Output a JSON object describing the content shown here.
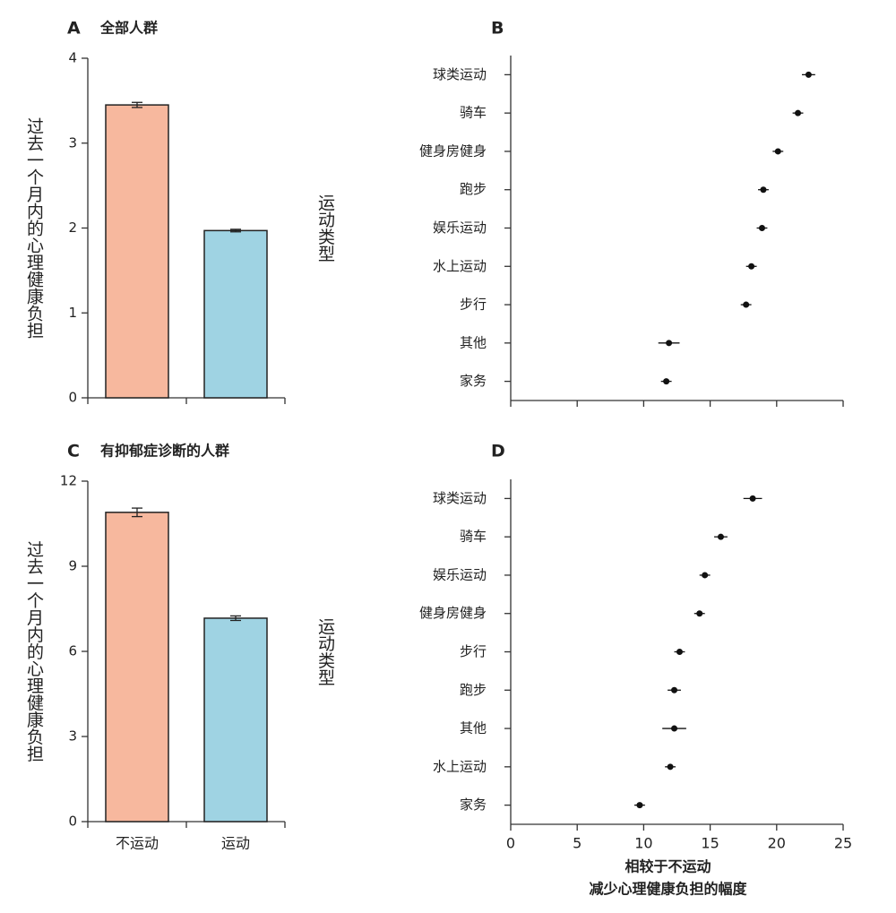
{
  "chart_data": [
    {
      "type": "bar",
      "panel": "A",
      "title": "全部人群",
      "ylabel": "过去一个月内的心理健康负担",
      "categories": [
        null,
        null
      ],
      "values": [
        3.45,
        1.97
      ],
      "errors": [
        0.03,
        0.015
      ],
      "colors": [
        "#f7b89e",
        "#9fd3e3"
      ],
      "ylim": [
        0,
        4
      ],
      "yticks": [
        0,
        1,
        2,
        3,
        4
      ]
    },
    {
      "type": "dot",
      "panel": "B",
      "ylabel": "运动类型",
      "categories": [
        "球类运动",
        "骑车",
        "健身房健身",
        "跑步",
        "娱乐运动",
        "水上运动",
        "步行",
        "其他",
        "家务"
      ],
      "values": [
        22.4,
        21.6,
        20.1,
        19.0,
        18.9,
        18.1,
        17.7,
        11.9,
        11.7
      ],
      "errors": [
        0.5,
        0.4,
        0.4,
        0.4,
        0.4,
        0.4,
        0.4,
        0.8,
        0.4
      ],
      "xlim": [
        0,
        25
      ],
      "xticks": [
        0,
        5,
        10,
        15,
        20,
        25
      ],
      "tick_labels": false,
      "color": "#111111"
    },
    {
      "type": "bar",
      "panel": "C",
      "title": "有抑郁症诊断的人群",
      "ylabel": "过去一个月内的心理健康负担",
      "categories": [
        "不运动",
        "运动"
      ],
      "values": [
        10.9,
        7.17
      ],
      "errors": [
        0.15,
        0.08
      ],
      "colors": [
        "#f7b89e",
        "#9fd3e3"
      ],
      "ylim": [
        0,
        12
      ],
      "yticks": [
        0,
        3,
        6,
        9,
        12
      ]
    },
    {
      "type": "dot",
      "panel": "D",
      "ylabel": "运动类型",
      "xlabel": [
        "相较于不运动",
        "减少心理健康负担的幅度"
      ],
      "categories": [
        "球类运动",
        "骑车",
        "娱乐运动",
        "健身房健身",
        "步行",
        "跑步",
        "其他",
        "水上运动",
        "家务"
      ],
      "values": [
        18.2,
        15.8,
        14.6,
        14.2,
        12.7,
        12.3,
        12.3,
        12.0,
        9.7
      ],
      "errors": [
        0.7,
        0.5,
        0.4,
        0.4,
        0.4,
        0.5,
        0.9,
        0.4,
        0.4
      ],
      "xlim": [
        0,
        25
      ],
      "xticks": [
        0,
        5,
        10,
        15,
        20,
        25
      ],
      "tick_labels": true,
      "color": "#111111"
    }
  ]
}
